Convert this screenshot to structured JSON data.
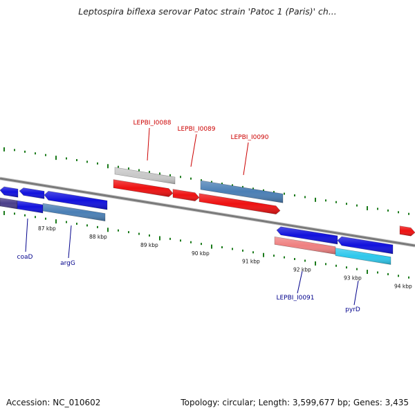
{
  "header": {
    "title": "Leptospira biflexa serovar Patoc strain 'Patoc 1 (Paris)' ch..."
  },
  "footer": {
    "accession": "Accession: NC_010602",
    "summary": "Topology: circular; Length: 3,599,677 bp; Genes: 3,435"
  },
  "colors": {
    "forward_gene": "#ee1111",
    "reverse_gene": "#1111dd",
    "backbone": "#7a7a7a",
    "tick": "#1a7a1a",
    "label_red": "#cc0000",
    "label_blue": "#00008b",
    "steelblue": "#4a7fb5",
    "grey_gene": "#c8c8c8",
    "salmon_gene": "#ef8080",
    "cyan_gene": "#2ec8ec",
    "dark_purple": "#4a3e8a"
  },
  "ticks": {
    "labels": [
      "87 kbp",
      "88 kbp",
      "89 kbp",
      "90 kbp",
      "91 kbp",
      "92 kbp",
      "93 kbp",
      "94 kbp"
    ]
  },
  "genes": [
    {
      "name": "LEPBI_I0088",
      "label": "LEPBI_I0088",
      "color": "grey_gene",
      "strand": "forward",
      "labelled": true
    },
    {
      "name": "LEPBI_I0089",
      "label": "LEPBI_I0089",
      "color": "forward_gene",
      "strand": "forward",
      "labelled": true
    },
    {
      "name": "LEPBI_I0090",
      "label": "LEPBI_I0090",
      "color": "steelblue",
      "strand": "forward",
      "labelled": true
    },
    {
      "name": "coaD",
      "label": "coaD",
      "color": "reverse_gene",
      "strand": "reverse",
      "labelled": true
    },
    {
      "name": "argG",
      "label": "argG",
      "color": "steelblue",
      "strand": "reverse",
      "labelled": true
    },
    {
      "name": "LEPBI_I0091",
      "label": "LEPBI_I0091",
      "color": "salmon_gene",
      "strand": "reverse",
      "labelled": true
    },
    {
      "name": "pyrD",
      "label": "pyrD",
      "color": "cyan_gene",
      "strand": "reverse",
      "labelled": true
    }
  ]
}
